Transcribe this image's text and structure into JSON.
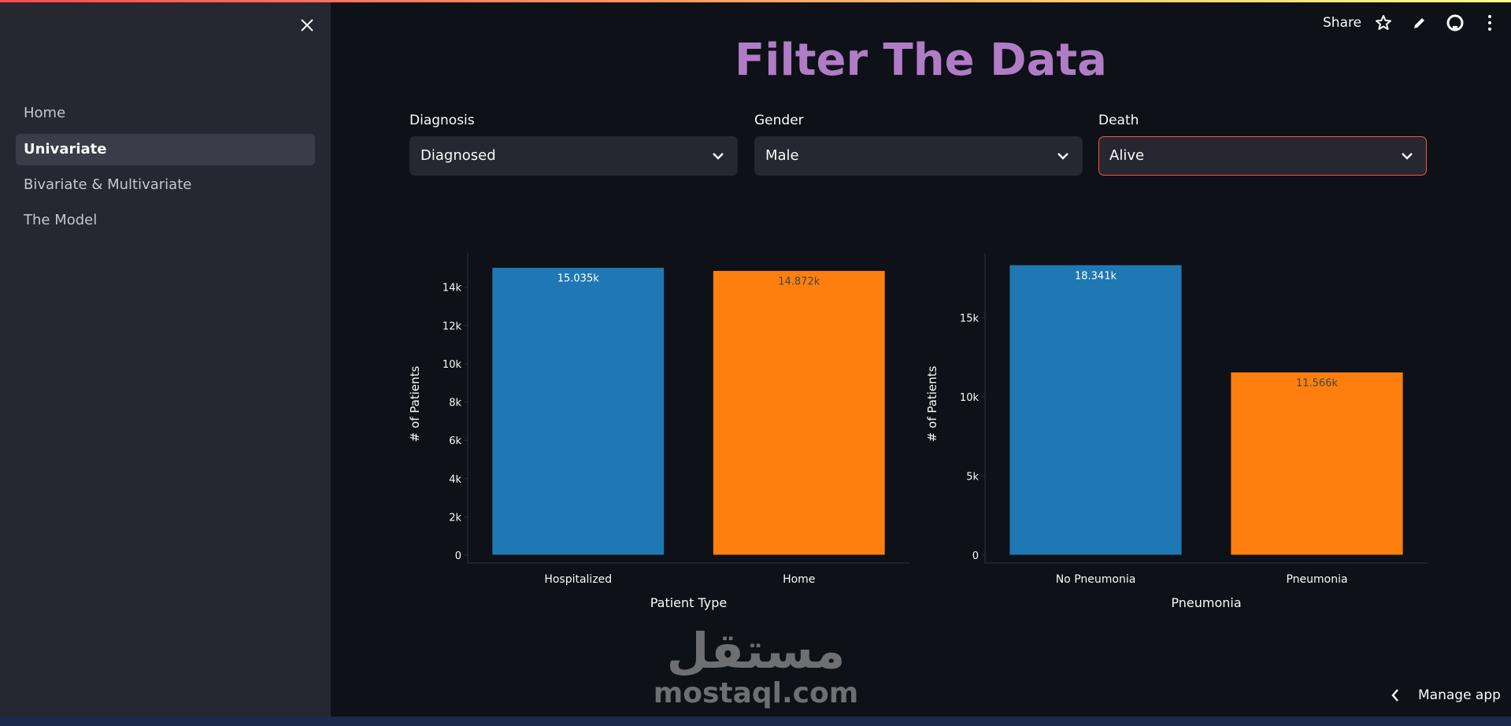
{
  "sidebar": {
    "items": [
      "Home",
      "Univariate",
      "Bivariate & Multivariate",
      "The Model"
    ]
  },
  "header": {
    "share": "Share"
  },
  "title": "Filter The Data",
  "filters": [
    {
      "label": "Diagnosis",
      "value": "Diagnosed"
    },
    {
      "label": "Gender",
      "value": "Male"
    },
    {
      "label": "Death",
      "value": "Alive"
    }
  ],
  "chart_data": [
    {
      "type": "bar",
      "x_label": "Patient Type",
      "y_label": "# of Patients",
      "categories": [
        "Hospitalized",
        "Home"
      ],
      "values": [
        15035,
        14872
      ],
      "value_labels": [
        "15.035k",
        "14.872k"
      ],
      "colors": [
        "#1f77b4",
        "#ff7f0e"
      ],
      "ylim": [
        0,
        15800
      ],
      "yticks": [
        0,
        {
          "value": 2000,
          "label": "2k"
        },
        {
          "value": 4000,
          "label": "4k"
        },
        {
          "value": 6000,
          "label": "6k"
        },
        {
          "value": 8000,
          "label": "8k"
        },
        {
          "value": 10000,
          "label": "10k"
        },
        {
          "value": 12000,
          "label": "12k"
        },
        {
          "value": 14000,
          "label": "14k"
        }
      ]
    },
    {
      "type": "bar",
      "x_label": "Pneumonia",
      "y_label": "# of Patients",
      "categories": [
        "No Pneumonia",
        "Pneumonia"
      ],
      "values": [
        18341,
        11566
      ],
      "value_labels": [
        "18.341k",
        "11.566k"
      ],
      "colors": [
        "#1f77b4",
        "#ff7f0e"
      ],
      "ylim": [
        0,
        19100
      ],
      "yticks": [
        0,
        {
          "value": 5000,
          "label": "5k"
        },
        {
          "value": 10000,
          "label": "10k"
        },
        {
          "value": 15000,
          "label": "15k"
        }
      ]
    }
  ],
  "watermark": {
    "arabic": "مستقل",
    "latin": "mostaql.com"
  },
  "footer": {
    "manage": "Manage app"
  }
}
